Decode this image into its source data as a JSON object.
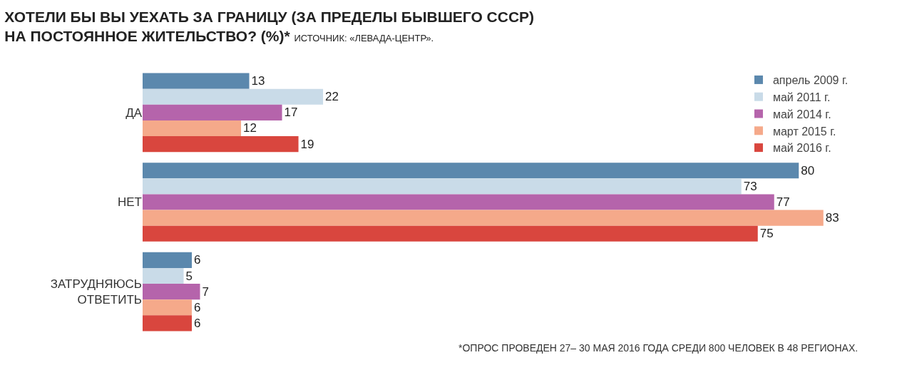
{
  "chart_data": {
    "type": "bar",
    "orientation": "horizontal",
    "title": "ХОТЕЛИ БЫ ВЫ УЕХАТЬ ЗА ГРАНИЦУ (ЗА ПРЕДЕЛЫ БЫВШЕГО СССР)\nНА ПОСТОЯННОЕ ЖИТЕЛЬСТВО? (%)*",
    "subtitle": "ИСТОЧНИК: «ЛЕВАДА-ЦЕНТР».",
    "annotations": [
      "*ОПРОС ПРОВЕДЕН 27– 30 МАЯ 2016 ГОДА СРЕДИ 800 ЧЕЛОВЕК В 48 РЕГИОНАХ."
    ],
    "categories": [
      "ДА",
      "НЕТ",
      "ЗАТРУДНЯЮСЬ\nОТВЕТИТЬ"
    ],
    "series": [
      {
        "name": "апрель 2009 г.",
        "color": "#5b88ad",
        "values": [
          13,
          80,
          6
        ]
      },
      {
        "name": "май 2011 г.",
        "color": "#c9dbe8",
        "values": [
          22,
          73,
          5
        ]
      },
      {
        "name": "май 2014 г.",
        "color": "#b564ab",
        "values": [
          17,
          77,
          7
        ]
      },
      {
        "name": "март 2015 г.",
        "color": "#f5a98a",
        "values": [
          12,
          83,
          6
        ]
      },
      {
        "name": "май 2016 г.",
        "color": "#d9463e",
        "values": [
          19,
          75,
          6
        ]
      }
    ],
    "data_labels": true,
    "legend": "top right"
  }
}
